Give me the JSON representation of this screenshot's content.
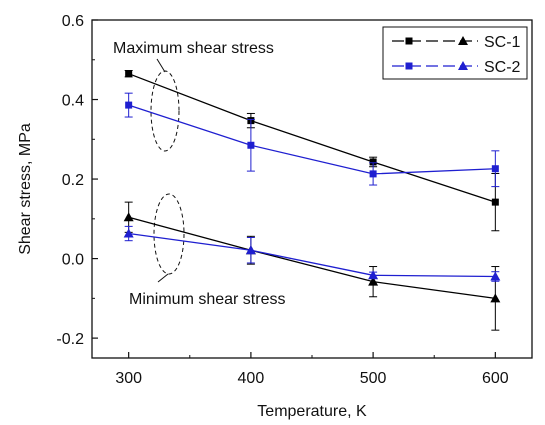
{
  "chart_data": {
    "type": "line",
    "xlabel": "Temperature, K",
    "ylabel": "Shear stress, MPa",
    "xlim": [
      270,
      630
    ],
    "ylim": [
      -0.25,
      0.6
    ],
    "xticks": [
      300,
      400,
      500,
      600
    ],
    "yticks": [
      -0.2,
      0.0,
      0.2,
      0.4,
      0.6
    ],
    "xtick_labels": [
      "300",
      "400",
      "500",
      "600"
    ],
    "ytick_labels": [
      "-0.2",
      "0.0",
      "0.2",
      "0.4",
      "0.6"
    ],
    "grid": false,
    "legend_position": "top-right",
    "legend": [
      {
        "label": "SC-1",
        "color": "#000000"
      },
      {
        "label": "SC-2",
        "color": "#1f1fd0"
      }
    ],
    "series": [
      {
        "legend_label": "SC-1",
        "group": "maximum",
        "marker": "square",
        "color": "#000000",
        "x": [
          300,
          400,
          500,
          600
        ],
        "y": [
          0.465,
          0.347,
          0.243,
          0.142
        ],
        "err": [
          0.008,
          0.018,
          0.012,
          0.072
        ]
      },
      {
        "legend_label": "SC-2",
        "group": "maximum",
        "marker": "square",
        "color": "#1f1fd0",
        "x": [
          300,
          400,
          500,
          600
        ],
        "y": [
          0.386,
          0.285,
          0.213,
          0.226
        ],
        "err": [
          0.03,
          0.065,
          0.028,
          0.045
        ]
      },
      {
        "legend_label": "SC-1",
        "group": "minimum",
        "marker": "triangle",
        "color": "#000000",
        "x": [
          300,
          400,
          500,
          600
        ],
        "y": [
          0.104,
          0.021,
          -0.058,
          -0.1
        ],
        "err": [
          0.038,
          0.035,
          0.038,
          0.08
        ]
      },
      {
        "legend_label": "SC-2",
        "group": "minimum",
        "marker": "triangle",
        "color": "#1f1fd0",
        "x": [
          300,
          400,
          500,
          600
        ],
        "y": [
          0.063,
          0.021,
          -0.042,
          -0.045
        ],
        "err": [
          0.018,
          0.032,
          0.008,
          0.012
        ]
      }
    ],
    "annotations": [
      {
        "text": "Maximum shear stress",
        "group": "maximum"
      },
      {
        "text": "Minimum shear stress",
        "group": "minimum"
      }
    ]
  }
}
